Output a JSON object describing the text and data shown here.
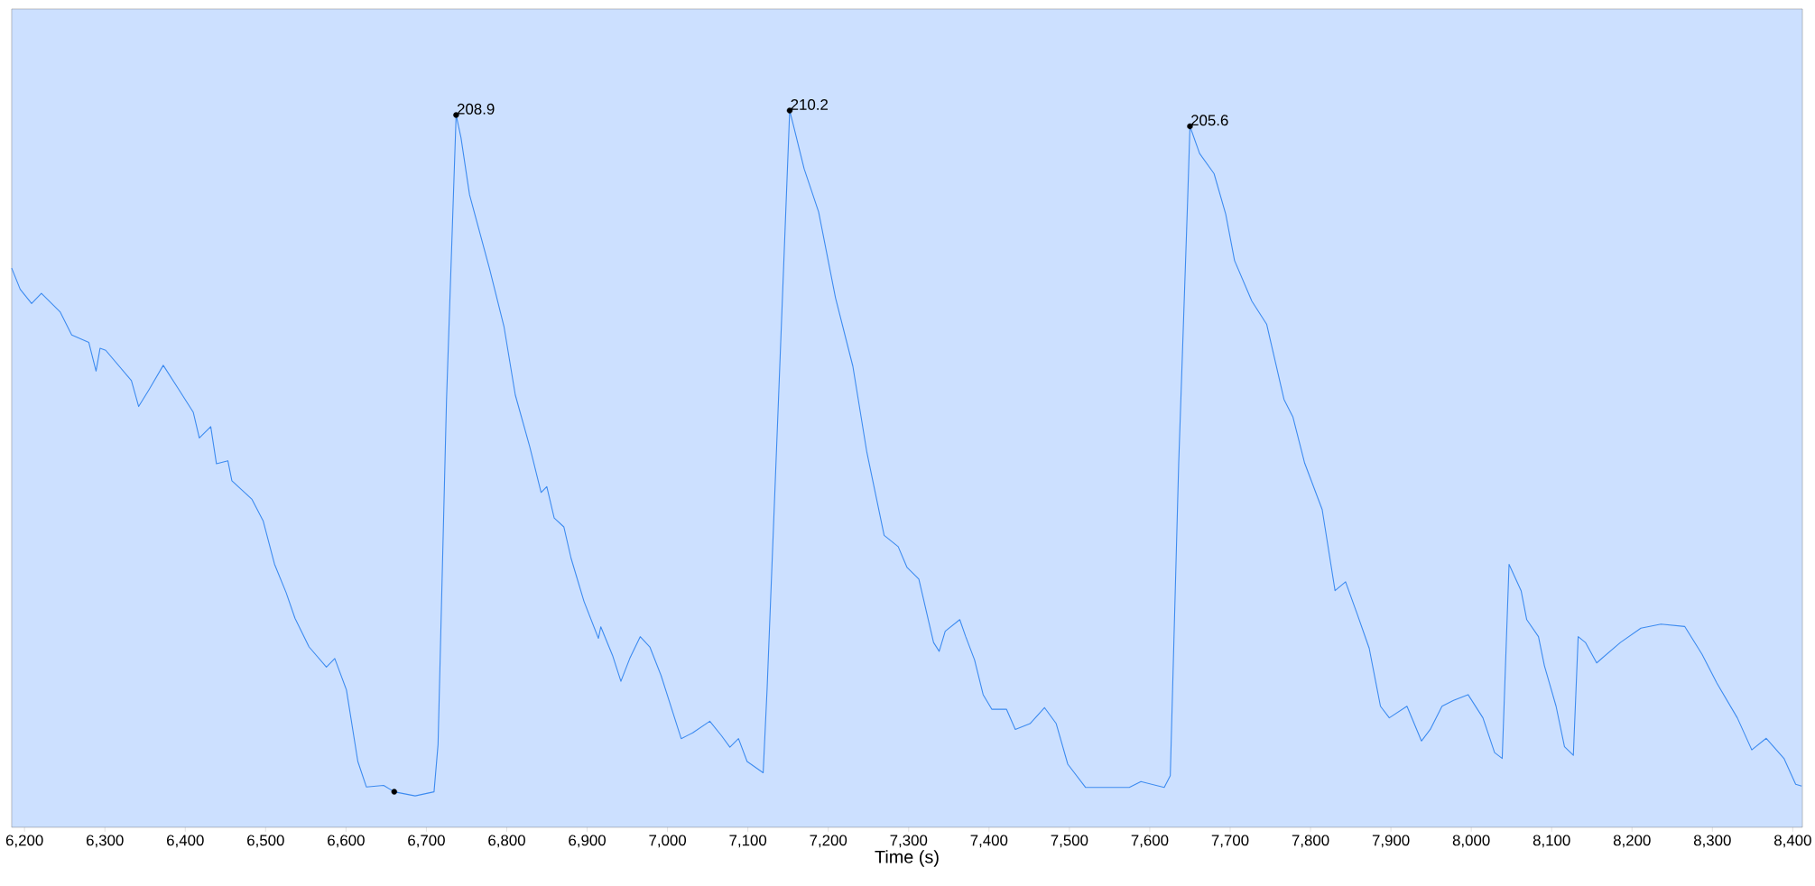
{
  "chart_data": {
    "type": "line",
    "xlabel": "Time (s)",
    "xlim": [
      6184,
      8412
    ],
    "ylim": [
      0,
      240
    ],
    "tick_labels": "x",
    "xticks": [
      {
        "value": 6200,
        "label": "6,200"
      },
      {
        "value": 6300,
        "label": "6,300"
      },
      {
        "value": 6400,
        "label": "6,400"
      },
      {
        "value": 6500,
        "label": "6,500"
      },
      {
        "value": 6600,
        "label": "6,600"
      },
      {
        "value": 6700,
        "label": "6,700"
      },
      {
        "value": 6800,
        "label": "6,800"
      },
      {
        "value": 6900,
        "label": "6,900"
      },
      {
        "value": 7000,
        "label": "7,000"
      },
      {
        "value": 7100,
        "label": "7,100"
      },
      {
        "value": 7200,
        "label": "7,200"
      },
      {
        "value": 7300,
        "label": "7,300"
      },
      {
        "value": 7400,
        "label": "7,400"
      },
      {
        "value": 7500,
        "label": "7,500"
      },
      {
        "value": 7600,
        "label": "7,600"
      },
      {
        "value": 7700,
        "label": "7,700"
      },
      {
        "value": 7800,
        "label": "7,800"
      },
      {
        "value": 7900,
        "label": "7,900"
      },
      {
        "value": 8000,
        "label": "8,000"
      },
      {
        "value": 8100,
        "label": "8,100"
      },
      {
        "value": 8200,
        "label": "8,200"
      },
      {
        "value": 8300,
        "label": "8,300"
      },
      {
        "value": 8400,
        "label": "8,400"
      }
    ],
    "series": [
      {
        "color": "#3d8bf0",
        "x": [
          6184,
          6194.6,
          6208.8,
          6221,
          6244.5,
          6258.7,
          6280,
          6289,
          6294,
          6301,
          6333,
          6342,
          6355,
          6372.6,
          6392,
          6410,
          6417.5,
          6431.7,
          6438.8,
          6453,
          6458,
          6483,
          6497,
          6511,
          6525.5,
          6536.5,
          6554,
          6575.6,
          6586,
          6600.5,
          6614.7,
          6625.4,
          6646.8,
          6660,
          6686,
          6709.5,
          6714.5,
          6725,
          6737,
          6743,
          6753.7,
          6778.7,
          6796.5,
          6810.6,
          6828.5,
          6842.7,
          6849.8,
          6859,
          6871,
          6880,
          6896,
          6914,
          6917,
          6931.6,
          6942,
          6953,
          6966,
          6978,
          6992,
          7017,
          7031.3,
          7052.6,
          7067,
          7077.6,
          7088.3,
          7099,
          7119,
          7124,
          7138,
          7152,
          7156,
          7170,
          7188,
          7209,
          7230.6,
          7248,
          7269.5,
          7287,
          7298,
          7312.7,
          7331,
          7338,
          7345.5,
          7363.6,
          7371,
          7382,
          7392.7,
          7403.6,
          7421.8,
          7432.7,
          7451,
          7469,
          7483.6,
          7498,
          7520,
          7574.5,
          7589,
          7618,
          7625.5,
          7636,
          7647,
          7650,
          7662,
          7680,
          7694.5,
          7705.5,
          7727,
          7745.5,
          7767,
          7778,
          7792.7,
          7814.5,
          7830.5,
          7843.6,
          7858,
          7873,
          7887,
          7898,
          7920,
          7938,
          7949,
          7963.6,
          7978,
          7996,
          8014.5,
          8029,
          8038.5,
          8047,
          8062,
          8069,
          8083.6,
          8091,
          8105.5,
          8116,
          8127,
          8133,
          8142,
          8156,
          8185.5,
          8211,
          8236,
          8265.5,
          8287,
          8305.5,
          8331,
          8349,
          8367,
          8389,
          8403.6,
          8411
        ],
        "values": [
          164.0,
          157.8,
          153.6,
          156.6,
          151.1,
          144.4,
          142.2,
          133.8,
          140.5,
          139.9,
          131.0,
          123.4,
          128.4,
          135.5,
          128.4,
          121.7,
          114.2,
          117.5,
          106.6,
          107.5,
          101.6,
          96.2,
          89.8,
          77.2,
          68.8,
          61.3,
          52.9,
          47.0,
          49.5,
          40.3,
          19.3,
          11.8,
          12.3,
          10.4,
          9.2,
          10.4,
          24.3,
          125.1,
          208.9,
          202.3,
          185.5,
          163.7,
          146.9,
          126.8,
          111.7,
          98.2,
          99.9,
          90.7,
          88.1,
          78.9,
          66.3,
          55.4,
          58.8,
          50.4,
          42.8,
          49.5,
          55.9,
          52.9,
          44.5,
          26.0,
          27.7,
          31.1,
          26.9,
          23.5,
          26.0,
          19.3,
          16.0,
          41.1,
          125.1,
          210.2,
          206.5,
          193.1,
          180.5,
          155.3,
          135.2,
          110.0,
          85.6,
          82.3,
          76.2,
          72.8,
          54.2,
          51.6,
          57.5,
          60.9,
          55.9,
          49.1,
          38.9,
          34.6,
          34.6,
          28.7,
          30.4,
          35.1,
          30.4,
          18.5,
          11.7,
          11.7,
          13.4,
          11.7,
          15.1,
          106.8,
          183.2,
          205.6,
          197.6,
          191.7,
          179.8,
          166.2,
          154.3,
          147.5,
          125.5,
          120.4,
          106.8,
          93.2,
          69.4,
          72.0,
          62.6,
          52.5,
          35.5,
          32.1,
          35.5,
          25.3,
          28.7,
          35.5,
          37.2,
          38.9,
          32.1,
          21.9,
          20.2,
          77.1,
          69.4,
          60.9,
          55.9,
          47.4,
          35.5,
          23.6,
          21.1,
          55.9,
          54.2,
          48.2,
          54.2,
          58.4,
          59.6,
          58.9,
          50.8,
          42.3,
          32.1,
          22.7,
          26.1,
          20.2,
          12.6,
          12.1
        ]
      },
      {
        "type": "scatter",
        "color": "#000000",
        "marker": "circle",
        "x": [
          6660,
          6737,
          7152,
          7650
        ],
        "values": [
          10.4,
          208.9,
          210.2,
          205.6
        ],
        "value_labels": [
          null,
          "208.9",
          "210.2",
          "205.6"
        ]
      }
    ]
  }
}
